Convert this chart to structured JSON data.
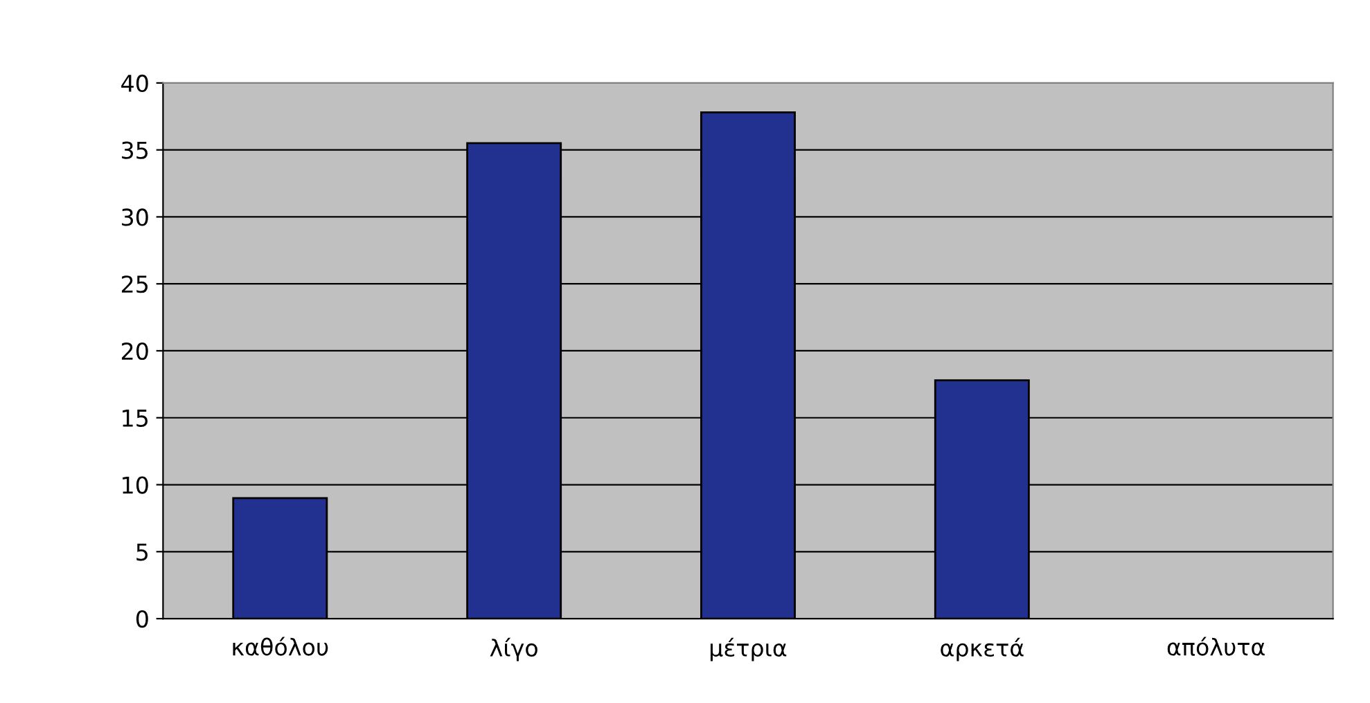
{
  "chart_data": {
    "type": "bar",
    "categories": [
      "καθόλου",
      "λίγο",
      "μέτρια",
      "αρκετά",
      "απόλυτα"
    ],
    "values": [
      9,
      35.5,
      37.8,
      17.8,
      null
    ],
    "color": "#22318f",
    "ylim": [
      0,
      40
    ],
    "yticks": [
      0,
      5,
      10,
      15,
      20,
      25,
      30,
      35,
      40
    ],
    "grid": "y"
  }
}
